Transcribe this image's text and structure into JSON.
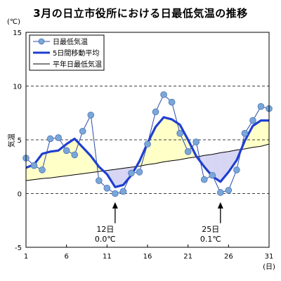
{
  "chart_data": {
    "type": "line",
    "title": "3月の日立市役所における日最低気温の推移",
    "unit_label": "(℃)",
    "x_unit_label": "(日)",
    "ylabel": "気温",
    "xlim": [
      1,
      31
    ],
    "ylim": [
      -5,
      15
    ],
    "x_ticks": [
      1,
      6,
      11,
      16,
      21,
      26,
      31
    ],
    "y_ticks": [
      -5,
      0,
      5,
      10,
      15
    ],
    "grid": "horizontal-dashed",
    "legend_position": "top-left",
    "x": [
      1,
      2,
      3,
      4,
      5,
      6,
      7,
      8,
      9,
      10,
      11,
      12,
      13,
      14,
      15,
      16,
      17,
      18,
      19,
      20,
      21,
      22,
      23,
      24,
      25,
      26,
      27,
      28,
      29,
      30,
      31
    ],
    "series": [
      {
        "name": "日最低気温",
        "color": "#7ba7d8",
        "marker": "circle",
        "values": [
          3.3,
          2.6,
          2.2,
          5.1,
          5.2,
          4.0,
          3.6,
          5.8,
          7.3,
          1.2,
          0.5,
          0.0,
          0.2,
          1.9,
          2.0,
          4.6,
          7.6,
          9.2,
          8.5,
          5.6,
          3.9,
          4.8,
          1.3,
          1.7,
          0.1,
          0.3,
          2.2,
          5.6,
          6.8,
          8.1,
          7.9
        ]
      },
      {
        "name": "5日間移動平均",
        "color": "#1f3fd0",
        "values": [
          2.4,
          2.7,
          3.7,
          3.9,
          4.0,
          4.6,
          5.1,
          4.3,
          3.5,
          2.5,
          1.8,
          0.6,
          0.8,
          1.7,
          3.0,
          4.7,
          6.2,
          7.1,
          6.9,
          6.4,
          5.0,
          3.5,
          2.5,
          1.6,
          1.1,
          2.0,
          3.1,
          4.9,
          6.3,
          6.8,
          6.8
        ]
      },
      {
        "name": "平年日最低気温",
        "color": "#000000",
        "values": [
          1.2,
          1.3,
          1.4,
          1.45,
          1.55,
          1.65,
          1.75,
          1.85,
          1.95,
          2.05,
          2.15,
          2.25,
          2.35,
          2.45,
          2.55,
          2.7,
          2.8,
          2.95,
          3.05,
          3.15,
          3.3,
          3.4,
          3.55,
          3.65,
          3.8,
          3.9,
          4.05,
          4.15,
          4.3,
          4.4,
          4.6
        ]
      }
    ],
    "fill_above_color": "#ffffc8",
    "fill_below_color": "#d6d6f4",
    "annotations": [
      {
        "x": 12,
        "line1": "12日",
        "line2": "0.0℃",
        "arrow_value": -0.8,
        "text_value": -2.9
      },
      {
        "x": 25,
        "line1": "25日",
        "line2": "0.1℃",
        "arrow_value": -0.8,
        "text_value": -2.9
      }
    ]
  }
}
